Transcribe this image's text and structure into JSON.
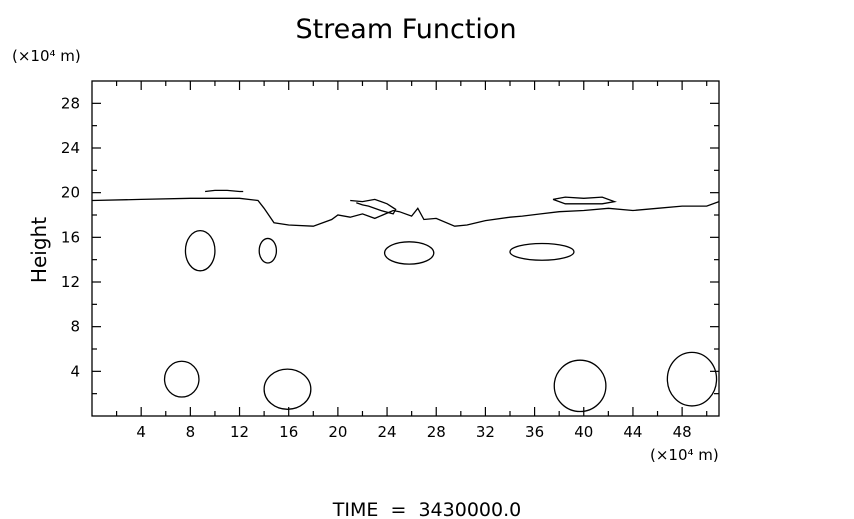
{
  "chart_data": {
    "type": "line",
    "title": "Stream Function",
    "ylabel": "Height",
    "y_unit": "(×10⁴ m)",
    "x_unit": "(×10⁴ m)",
    "xlim": [
      0,
      51
    ],
    "ylim": [
      0,
      30
    ],
    "x_ticks": [
      4,
      8,
      12,
      16,
      20,
      24,
      28,
      32,
      36,
      40,
      44,
      48
    ],
    "y_ticks": [
      4,
      8,
      12,
      16,
      20,
      24,
      28
    ],
    "grid": false,
    "footer": "TIME  =  3430000.0",
    "contours": [
      {
        "x": [
          0,
          4,
          8,
          12,
          13.5,
          14,
          14.8,
          16,
          18,
          19.5,
          20,
          21,
          22,
          23,
          24.5,
          25,
          26,
          26.5,
          27,
          28,
          29.5,
          30.5,
          32,
          34,
          35,
          36.5,
          38,
          40,
          42,
          44,
          46,
          48,
          50,
          51
        ],
        "y": [
          19.3,
          19.4,
          19.5,
          19.5,
          19.3,
          18.6,
          17.3,
          17.1,
          17.0,
          17.6,
          18.0,
          17.8,
          18.1,
          17.7,
          18.4,
          18.3,
          17.9,
          18.6,
          17.6,
          17.7,
          17.0,
          17.1,
          17.5,
          17.8,
          17.9,
          18.1,
          18.3,
          18.4,
          18.6,
          18.4,
          18.6,
          18.8,
          18.8,
          19.2
        ]
      },
      {
        "x": [
          9.2,
          10,
          11,
          12,
          12.3
        ],
        "y": [
          20.1,
          20.2,
          20.2,
          20.1,
          20.1
        ]
      },
      {
        "x": [
          21,
          22,
          23,
          24,
          24.7,
          24.5,
          23.5,
          22.5,
          22,
          21.5
        ],
        "y": [
          19.3,
          19.2,
          19.4,
          19.0,
          18.5,
          18.1,
          18.4,
          18.8,
          18.9,
          19.1
        ]
      },
      {
        "x": [
          37.5,
          38.5,
          40,
          41.5,
          42.5,
          41.5,
          40,
          38.5,
          37.5
        ],
        "y": [
          19.4,
          19.6,
          19.5,
          19.6,
          19.2,
          19.0,
          19.0,
          19.0,
          19.4
        ]
      }
    ],
    "closed_contours": [
      {
        "cx": 8.8,
        "cy": 14.8,
        "rx": 1.2,
        "ry": 1.8
      },
      {
        "cx": 14.3,
        "cy": 14.8,
        "rx": 0.7,
        "ry": 1.1
      },
      {
        "cx": 25.8,
        "cy": 14.6,
        "rx": 2.0,
        "ry": 1.0
      },
      {
        "cx": 36.6,
        "cy": 14.7,
        "rx": 2.6,
        "ry": 0.75
      },
      {
        "cx": 7.3,
        "cy": 3.3,
        "rx": 1.4,
        "ry": 1.6
      },
      {
        "cx": 15.9,
        "cy": 2.4,
        "rx": 1.9,
        "ry": 1.8
      },
      {
        "cx": 39.7,
        "cy": 2.7,
        "rx": 2.1,
        "ry": 2.3
      },
      {
        "cx": 48.8,
        "cy": 3.3,
        "rx": 2.0,
        "ry": 2.4
      }
    ]
  }
}
